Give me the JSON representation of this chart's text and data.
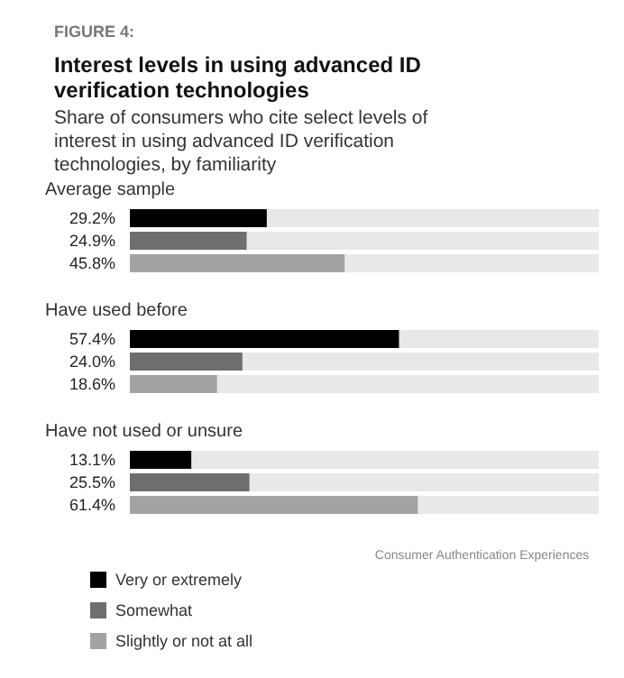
{
  "chart_data": {
    "type": "bar",
    "orientation": "horizontal",
    "title": "Interest levels in using advanced ID verification technologies",
    "subtitle": "Share of consumers who cite select levels of interest in using advanced ID verification technologies, by familiarity",
    "annotations": [
      "FIGURE 4:",
      "Consumer Authentication Experiences"
    ],
    "categories": [
      "Average sample",
      "Have used before",
      "Have not used or unsure"
    ],
    "series": [
      {
        "name": "Very or extremely",
        "color": "#000000",
        "values": [
          29.2,
          57.4,
          13.1
        ],
        "value_labels": [
          "29.2%",
          "57.4%",
          "13.1%"
        ]
      },
      {
        "name": "Somewhat",
        "color": "#6e6e6e",
        "values": [
          24.9,
          24.0,
          25.5
        ],
        "value_labels": [
          "24.9%",
          "24.0%",
          "25.5%"
        ]
      },
      {
        "name": "Slightly or not at all",
        "color": "#a3a3a3",
        "values": [
          45.8,
          18.6,
          61.4
        ],
        "value_labels": [
          "45.8%",
          "18.6%",
          "61.4%"
        ]
      }
    ],
    "xlim": [
      0,
      100
    ],
    "tick_labels": "y",
    "legend": "bottom left"
  }
}
